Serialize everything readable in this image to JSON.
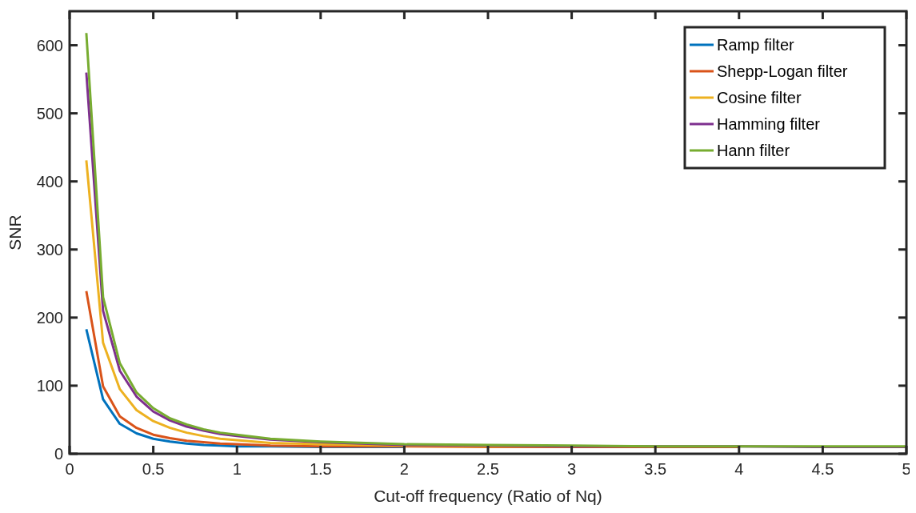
{
  "chart_data": {
    "type": "line",
    "xlabel": "Cut-off frequency (Ratio of Nq)",
    "ylabel": "SNR",
    "x": [
      0.1,
      0.2,
      0.3,
      0.4,
      0.5,
      0.6,
      0.7,
      0.8,
      0.9,
      1.0,
      1.2,
      1.5,
      2.0,
      2.5,
      3.0,
      3.5,
      4.0,
      4.5,
      5.0
    ],
    "series": [
      {
        "name": "Ramp filter",
        "color": "#0072bd",
        "values": [
          183,
          80,
          44,
          30,
          22,
          18,
          15,
          13,
          12,
          11,
          11,
          10,
          10,
          null,
          null,
          null,
          null,
          null,
          null
        ]
      },
      {
        "name": "Shepp-Logan filter",
        "color": "#d95319",
        "values": [
          239,
          99,
          55,
          38,
          28,
          23,
          19,
          17,
          15,
          14,
          12,
          11,
          11,
          10,
          10,
          10,
          10,
          null,
          null
        ]
      },
      {
        "name": "Cosine filter",
        "color": "#edb120",
        "values": [
          431,
          163,
          95,
          64,
          48,
          38,
          31,
          26,
          22,
          20,
          16,
          14,
          12,
          11,
          11,
          null,
          null,
          null,
          null
        ]
      },
      {
        "name": "Hamming filter",
        "color": "#7e2f8e",
        "values": [
          560,
          210,
          122,
          84,
          62,
          49,
          40,
          34,
          29,
          26,
          21,
          17,
          13,
          12,
          11,
          11,
          11,
          10,
          10
        ]
      },
      {
        "name": "Hann filter",
        "color": "#77ac30",
        "values": [
          618,
          230,
          133,
          90,
          67,
          52,
          43,
          36,
          31,
          28,
          22,
          18,
          14,
          13,
          12,
          11,
          11,
          11,
          11
        ]
      }
    ],
    "xlim": [
      0,
      5
    ],
    "xticks": [
      0,
      0.5,
      1,
      1.5,
      2,
      2.5,
      3,
      3.5,
      4,
      4.5,
      5
    ],
    "ylim": [
      0,
      650
    ],
    "yticks": [
      0,
      100,
      200,
      300,
      400,
      500,
      600
    ],
    "grid": false,
    "legend": "top right",
    "marker": "none",
    "line_style": "solid"
  }
}
